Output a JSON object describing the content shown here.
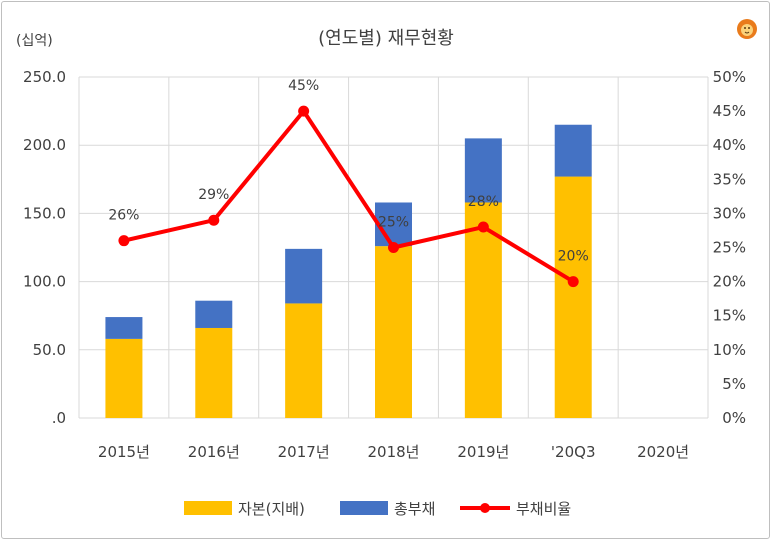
{
  "chart_data": {
    "type": "bar",
    "title": "(연도별) 재무현황",
    "y_unit_label": "(십억)",
    "categories": [
      "2015년",
      "2016년",
      "2017년",
      "2018년",
      "2019년",
      "'20Q3",
      "2020년"
    ],
    "series": [
      {
        "name": "자본(지배)",
        "kind": "bar",
        "axis": "left",
        "color": "#FFC000",
        "values": [
          58,
          66,
          84,
          126,
          158,
          177,
          null
        ]
      },
      {
        "name": "총부채",
        "kind": "bar",
        "axis": "left",
        "color": "#4472C4",
        "values": [
          16,
          20,
          40,
          32,
          47,
          38,
          null
        ]
      },
      {
        "name": "부채비율",
        "kind": "line",
        "axis": "right",
        "color": "#FF0000",
        "values": [
          26,
          29,
          45,
          25,
          28,
          20,
          null
        ],
        "labels": [
          "26%",
          "29%",
          "45%",
          "25%",
          "28%",
          "20%",
          null
        ]
      }
    ],
    "y_left": {
      "min": 0,
      "max": 250,
      "ticks": [
        ".0",
        "50.0",
        "100.0",
        "150.0",
        "200.0",
        "250.0"
      ]
    },
    "y_right": {
      "min": 0,
      "max": 50,
      "ticks": [
        "0%",
        "5%",
        "10%",
        "15%",
        "20%",
        "25%",
        "30%",
        "35%",
        "40%",
        "45%",
        "50%"
      ]
    },
    "grid": true,
    "legend_position": "bottom"
  },
  "icons": {
    "corner": "lion-face-icon"
  }
}
